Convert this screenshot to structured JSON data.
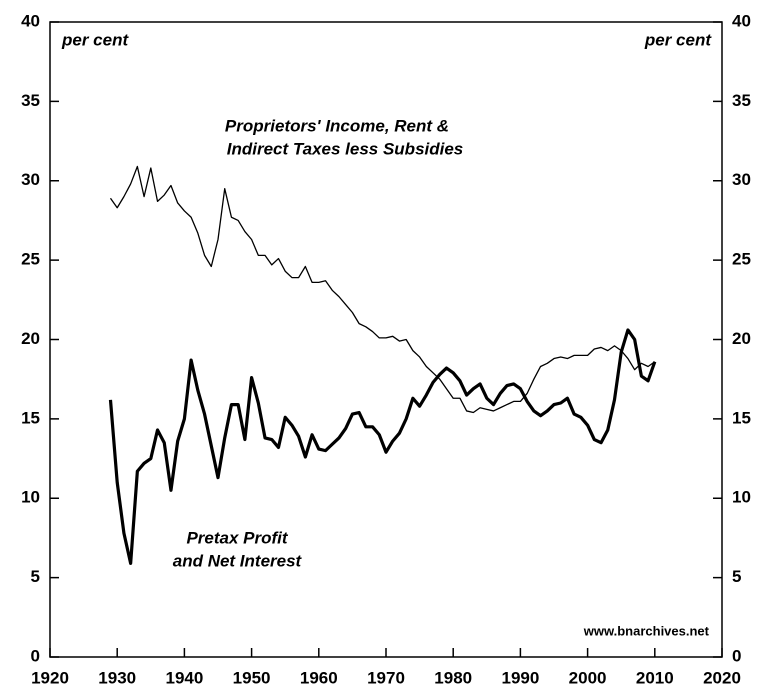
{
  "chart_data": {
    "type": "line",
    "left_unit": "per cent",
    "right_unit": "per cent",
    "annotations": [
      "Proprietors' Income, Rent &",
      "Indirect Taxes less Subsidies",
      "Pretax Profit",
      "and Net Interest"
    ],
    "source": "www.bnarchives.net",
    "x": [
      1929,
      1930,
      1931,
      1932,
      1933,
      1934,
      1935,
      1936,
      1937,
      1938,
      1939,
      1940,
      1941,
      1942,
      1943,
      1944,
      1945,
      1946,
      1947,
      1948,
      1949,
      1950,
      1951,
      1952,
      1953,
      1954,
      1955,
      1956,
      1957,
      1958,
      1959,
      1960,
      1961,
      1962,
      1963,
      1964,
      1965,
      1966,
      1967,
      1968,
      1969,
      1970,
      1971,
      1972,
      1973,
      1974,
      1975,
      1976,
      1977,
      1978,
      1979,
      1980,
      1981,
      1982,
      1983,
      1984,
      1985,
      1986,
      1987,
      1988,
      1989,
      1990,
      1991,
      1992,
      1993,
      1994,
      1995,
      1996,
      1997,
      1998,
      1999,
      2000,
      2001,
      2002,
      2003,
      2004,
      2005,
      2006,
      2007,
      2008,
      2009,
      2010
    ],
    "series": [
      {
        "name": "Proprietors' Income, Rent & Indirect Taxes less Subsidies",
        "color": "#000000",
        "width": 1.3,
        "values": [
          28.9,
          28.3,
          29.0,
          29.8,
          30.9,
          29.0,
          30.8,
          28.7,
          29.1,
          29.7,
          28.6,
          28.1,
          27.7,
          26.7,
          25.3,
          24.6,
          26.3,
          29.5,
          27.7,
          27.5,
          26.8,
          26.3,
          25.3,
          25.3,
          24.7,
          25.1,
          24.3,
          23.9,
          23.9,
          24.6,
          23.6,
          23.6,
          23.7,
          23.1,
          22.7,
          22.2,
          21.7,
          21.0,
          20.8,
          20.5,
          20.1,
          20.1,
          20.2,
          19.9,
          20.0,
          19.3,
          18.9,
          18.3,
          17.9,
          17.5,
          16.9,
          16.3,
          16.3,
          15.5,
          15.4,
          15.7,
          15.6,
          15.5,
          15.7,
          15.9,
          16.1,
          16.1,
          16.6,
          17.5,
          18.3,
          18.5,
          18.8,
          18.9,
          18.8,
          19.0,
          19.0,
          19.0,
          19.4,
          19.5,
          19.3,
          19.6,
          19.3,
          18.8,
          18.1,
          18.5,
          18.3,
          18.6
        ]
      },
      {
        "name": "Pretax Profit and Net Interest",
        "color": "#000000",
        "width": 3.2,
        "values": [
          16.2,
          11.0,
          7.8,
          5.9,
          11.7,
          12.2,
          12.5,
          14.3,
          13.5,
          10.5,
          13.6,
          15.0,
          18.7,
          16.8,
          15.3,
          13.3,
          11.3,
          13.8,
          15.9,
          15.9,
          13.7,
          17.6,
          16.0,
          13.8,
          13.7,
          13.2,
          15.1,
          14.6,
          13.9,
          12.6,
          14.0,
          13.1,
          13.0,
          13.4,
          13.8,
          14.4,
          15.3,
          15.4,
          14.5,
          14.5,
          14.0,
          12.9,
          13.6,
          14.1,
          15.0,
          16.3,
          15.8,
          16.5,
          17.3,
          17.8,
          18.2,
          17.9,
          17.4,
          16.5,
          16.9,
          17.2,
          16.3,
          15.9,
          16.6,
          17.1,
          17.2,
          16.9,
          16.1,
          15.5,
          15.2,
          15.5,
          15.9,
          16.0,
          16.3,
          15.3,
          15.1,
          14.6,
          13.7,
          13.5,
          14.3,
          16.2,
          19.2,
          20.6,
          20.0,
          17.7,
          17.4,
          18.6
        ]
      }
    ],
    "xlim": [
      1920,
      2020
    ],
    "xticks": [
      1920,
      1930,
      1940,
      1950,
      1960,
      1970,
      1980,
      1990,
      2000,
      2010,
      2020
    ],
    "ylim": [
      0,
      40
    ],
    "yticks": [
      0,
      5,
      10,
      15,
      20,
      25,
      30,
      35,
      40
    ],
    "y2lim": [
      0,
      40
    ],
    "y2ticks": [
      0,
      5,
      10,
      15,
      20,
      25,
      30,
      35,
      40
    ],
    "grid": false
  }
}
